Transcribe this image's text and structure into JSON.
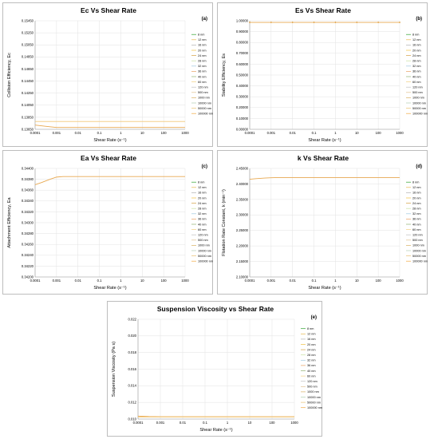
{
  "legend_entries": [
    "8 nm",
    "12 nm",
    "16 nm",
    "20 nm",
    "24 nm",
    "28 nm",
    "32 nm",
    "36 nm",
    "40 nm",
    "60 nm",
    "120 nm",
    "500 nm",
    "1000 nm",
    "10000 nm",
    "50000 nm",
    "100000 nm"
  ],
  "series_colors": [
    "#2ca02c",
    "#e6b84c",
    "#b0b0b0",
    "#f0c040",
    "#d4a040",
    "#c8e0a0",
    "#a0c8e0",
    "#e8a060",
    "#90b070",
    "#f2d080",
    "#c0c0c0",
    "#e0c090",
    "#d8b060",
    "#b0d0b0",
    "#e8c070",
    "#f0a840"
  ],
  "chart_data": [
    {
      "id": "a",
      "type": "line",
      "label": "(a)",
      "title": "Ec Vs Shear Rate",
      "xlabel": "Shear Rate (s⁻¹)",
      "ylabel": "Collision Efficiency, Ec",
      "xscale": "log",
      "xlim": [
        0.0001,
        1000
      ],
      "xticks": [
        "0.0001",
        "0.001",
        "0.01",
        "0.1",
        "1",
        "10",
        "100",
        "1000"
      ],
      "ylim": [
        0.1365,
        0.1545
      ],
      "yticks": [
        "0.13650",
        "0.13850",
        "0.14050",
        "0.14250",
        "0.14450",
        "0.14650",
        "0.14850",
        "0.15050",
        "0.15250",
        "0.15450"
      ],
      "grid": true,
      "legend": "right",
      "series": [
        {
          "x": [
            0.0001,
            0.0003,
            0.001,
            0.01,
            0.1,
            1,
            10,
            100,
            1000
          ],
          "y": [
            0.1372,
            0.137,
            0.1368,
            0.1368,
            0.1368,
            0.1368,
            0.1368,
            0.1368,
            0.1368
          ]
        },
        {
          "x": [
            0.0001,
            0.001,
            0.01,
            0.1,
            1,
            10,
            100,
            1000
          ],
          "y": [
            0.1378,
            0.1378,
            0.1378,
            0.1378,
            0.1378,
            0.1378,
            0.1378,
            0.1378
          ]
        }
      ]
    },
    {
      "id": "b",
      "type": "line",
      "label": "(b)",
      "title": "Es Vs Shear Rate",
      "xlabel": "Shear Rate (s⁻¹)",
      "ylabel": "Stability Efficiency, Es",
      "xscale": "log",
      "xlim": [
        0.0001,
        1000
      ],
      "xticks": [
        "0.0001",
        "0.001",
        "0.01",
        "0.1",
        "1",
        "10",
        "100",
        "1000"
      ],
      "ylim": [
        0,
        1
      ],
      "yticks": [
        "0.00000",
        "0.10000",
        "0.20000",
        "0.30000",
        "0.40000",
        "0.50000",
        "0.60000",
        "0.70000",
        "0.80000",
        "0.90000",
        "1.00000"
      ],
      "grid": true,
      "legend": "right",
      "series": [
        {
          "x": [
            0.0001,
            0.001,
            0.01,
            0.1,
            1,
            10,
            100,
            1000
          ],
          "y": [
            0.985,
            0.985,
            0.985,
            0.985,
            0.985,
            0.985,
            0.985,
            0.985
          ],
          "markers": true
        }
      ]
    },
    {
      "id": "c",
      "type": "line",
      "label": "(c)",
      "title": "Ea Vs Shear Rate",
      "xlabel": "Shear Rate (s⁻¹)",
      "ylabel": "Attachment Efficiency, Ea",
      "xscale": "log",
      "xlim": [
        0.0001,
        1000
      ],
      "xticks": [
        "0.0001",
        "0.001",
        "0.01",
        "0.1",
        "1",
        "10",
        "100",
        "1000"
      ],
      "ylim": [
        0.342,
        0.344
      ],
      "yticks": [
        "0.34200",
        "0.34220",
        "0.34240",
        "0.34260",
        "0.34280",
        "0.34300",
        "0.34320",
        "0.34340",
        "0.34360",
        "0.34380",
        "0.34400"
      ],
      "grid": true,
      "legend": "right",
      "series": [
        {
          "x": [
            0.0001,
            0.0002,
            0.0005,
            0.001,
            0.002,
            0.01,
            0.1,
            1,
            10,
            100,
            1000
          ],
          "y": [
            0.3437,
            0.34374,
            0.3438,
            0.34384,
            0.34385,
            0.34385,
            0.34385,
            0.34385,
            0.34385,
            0.34385,
            0.34385
          ]
        }
      ]
    },
    {
      "id": "d",
      "type": "line",
      "label": "(d)",
      "title": "k Vs Shear Rate",
      "xlabel": "Shear Rate (s⁻¹)",
      "ylabel": "Flotation Rate Constant, k (min⁻¹)",
      "xscale": "log",
      "xlim": [
        0.0001,
        1000
      ],
      "xticks": [
        "0.0001",
        "0.001",
        "0.01",
        "0.1",
        "1",
        "10",
        "100",
        "1000"
      ],
      "ylim": [
        2.1,
        2.45
      ],
      "yticks": [
        "2.10000",
        "2.15000",
        "2.20000",
        "2.25000",
        "2.30000",
        "2.35000",
        "2.40000",
        "2.45000"
      ],
      "grid": true,
      "legend": "right",
      "series": [
        {
          "x": [
            0.0001,
            0.0002,
            0.0005,
            0.001,
            0.002,
            0.01,
            0.1,
            1,
            10,
            100,
            1000
          ],
          "y": [
            2.415,
            2.417,
            2.419,
            2.42,
            2.4205,
            2.4205,
            2.4205,
            2.4205,
            2.4205,
            2.4205,
            2.4205
          ]
        }
      ]
    },
    {
      "id": "e",
      "type": "line",
      "label": "(e)",
      "title": "Suspension Viscosity vs Shear Rate",
      "xlabel": "Shear Rate (s⁻¹)",
      "ylabel": "Suspension Viscosity (Pa s)",
      "xscale": "log",
      "xlim": [
        0.0001,
        1000
      ],
      "xticks": [
        "0.0001",
        "0.001",
        "0.01",
        "0.1",
        "1",
        "10",
        "100",
        "1000"
      ],
      "ylim": [
        0.01,
        0.022
      ],
      "yticks": [
        "0.010",
        "0.012",
        "0.014",
        "0.016",
        "0.018",
        "0.020",
        "0.022"
      ],
      "grid": true,
      "legend": "right",
      "series": [
        {
          "x": [
            0.0001,
            0.0003,
            0.001,
            0.01,
            0.1,
            1,
            10,
            100,
            1000
          ],
          "y": [
            0.01035,
            0.0103,
            0.01028,
            0.01028,
            0.01028,
            0.01028,
            0.01028,
            0.01028,
            0.01028
          ]
        },
        {
          "x": [
            0.0001,
            0.001,
            0.01,
            0.1,
            1,
            10,
            100,
            1000
          ],
          "y": [
            0.01025,
            0.01025,
            0.01025,
            0.01025,
            0.01025,
            0.01025,
            0.01025,
            0.01025
          ]
        }
      ]
    }
  ]
}
